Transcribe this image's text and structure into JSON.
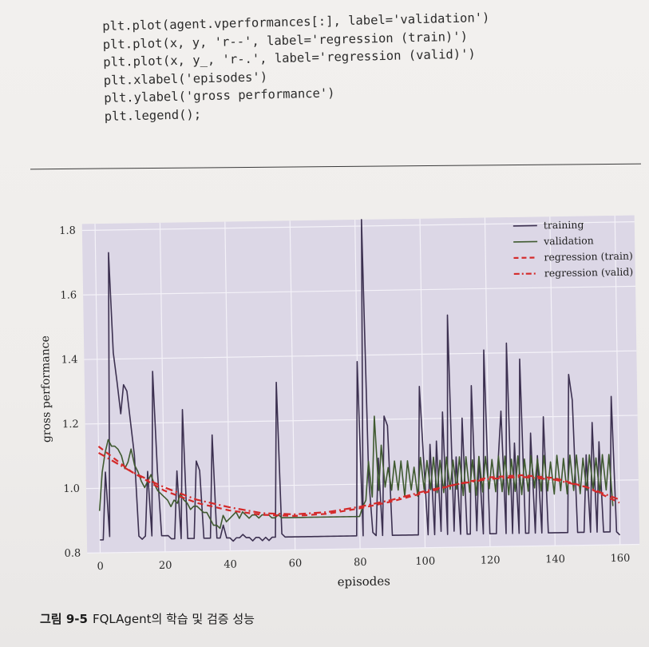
{
  "code": {
    "lines": [
      "plt.plot(agent.vperformances[:], label='validation')",
      "plt.plot(x, y, 'r--', label='regression (train)')",
      "plt.plot(x, y_, 'r-.', label='regression (valid)')",
      "plt.xlabel('episodes')",
      "plt.ylabel('gross performance')",
      "plt.legend();"
    ]
  },
  "caption": {
    "number": "그림 9-5",
    "text": "FQLAgent의 학습 및 검증 성능"
  },
  "chart_data": {
    "type": "line",
    "title": "",
    "xlabel": "episodes",
    "ylabel": "gross performance",
    "xlim": [
      -4,
      166
    ],
    "ylim": [
      0.8,
      1.82
    ],
    "xticks": [
      0,
      20,
      40,
      60,
      80,
      100,
      120,
      140,
      160
    ],
    "yticks": [
      0.8,
      1.0,
      1.2,
      1.4,
      1.6,
      1.8
    ],
    "xtick_labels": [
      "0",
      "20",
      "40",
      "60",
      "80",
      "100",
      "120",
      "140",
      "160"
    ],
    "ytick_labels": [
      "0.8",
      "1.0",
      "1.2",
      "1.4",
      "1.6",
      "1.8"
    ],
    "grid": true,
    "legend_position": "top-right",
    "colors": {
      "training": "#3c3050",
      "validation": "#3f5a30",
      "regression": "#d42a2a",
      "plot_bg": "#dcd7e6",
      "grid": "#f4f2f8"
    },
    "series": [
      {
        "name": "training",
        "style": "solid",
        "values": [
          0.84,
          0.84,
          1.05,
          0.85,
          1.73,
          1.42,
          1.33,
          1.23,
          1.32,
          1.3,
          1.2,
          1.1,
          0.85,
          0.84,
          0.85,
          1.05,
          0.85,
          1.36,
          1.05,
          0.85,
          0.85,
          0.85,
          0.84,
          0.84,
          1.05,
          0.84,
          1.24,
          0.84,
          0.84,
          0.84,
          1.08,
          1.05,
          0.84,
          0.84,
          0.84,
          1.16,
          0.84,
          0.84,
          0.88,
          0.84,
          0.84,
          0.83,
          0.84,
          0.84,
          0.85,
          0.84,
          0.84,
          0.83,
          0.84,
          0.84,
          0.83,
          0.84,
          0.83,
          0.84,
          0.84,
          1.32,
          0.85,
          0.84,
          0.84,
          0.84,
          0.84,
          0.84,
          0.84,
          0.84,
          0.84,
          0.84,
          0.84,
          0.84,
          0.84,
          0.84,
          0.84,
          0.84,
          0.84,
          0.84,
          0.84,
          0.84,
          0.84,
          0.84,
          0.84,
          0.84,
          1.38,
          0.84,
          1.82,
          1.02,
          0.85,
          0.84,
          1.08,
          0.84,
          1.21,
          1.18,
          0.84,
          0.84,
          0.84,
          0.84,
          0.84,
          0.84,
          0.84,
          0.84,
          0.84,
          1.3,
          1.07,
          0.84,
          1.12,
          0.84,
          1.13,
          0.85,
          1.22,
          0.84,
          1.52,
          0.85,
          1.08,
          0.84,
          1.2,
          0.84,
          0.84,
          1.3,
          0.85,
          1.08,
          0.84,
          1.41,
          0.84,
          0.84,
          0.84,
          1.08,
          1.22,
          0.84,
          1.43,
          0.84,
          1.12,
          0.84,
          1.38,
          0.84,
          0.84,
          1.15,
          0.84,
          1.08,
          0.84,
          1.2,
          0.84,
          0.84,
          0.84,
          0.84,
          0.84,
          0.84,
          0.84,
          1.33,
          1.25,
          0.84,
          0.84,
          0.84,
          1.08,
          0.84,
          1.18,
          0.84,
          1.12,
          0.84,
          0.84,
          0.84,
          1.26,
          0.84,
          0.83
        ]
      },
      {
        "name": "validation",
        "style": "solid",
        "values": [
          0.93,
          1.05,
          1.11,
          1.15,
          1.13,
          1.13,
          1.12,
          1.1,
          1.06,
          1.08,
          1.12,
          1.07,
          1.05,
          1.02,
          1.0,
          1.02,
          1.04,
          1.01,
          0.99,
          0.98,
          0.97,
          0.96,
          0.94,
          0.96,
          0.95,
          0.98,
          0.96,
          0.95,
          0.93,
          0.94,
          0.94,
          0.93,
          0.92,
          0.92,
          0.9,
          0.88,
          0.88,
          0.87,
          0.91,
          0.89,
          0.9,
          0.91,
          0.92,
          0.9,
          0.92,
          0.91,
          0.9,
          0.91,
          0.91,
          0.9,
          0.91,
          0.91,
          0.91,
          0.9,
          0.9,
          0.91,
          0.9,
          0.9,
          0.9,
          0.9,
          0.9,
          0.9,
          0.9,
          0.9,
          0.9,
          0.9,
          0.9,
          0.9,
          0.9,
          0.9,
          0.9,
          0.9,
          0.9,
          0.9,
          0.9,
          0.9,
          0.9,
          0.9,
          0.9,
          0.9,
          0.9,
          0.93,
          0.95,
          1.07,
          0.96,
          1.21,
          0.98,
          1.12,
          0.99,
          1.05,
          0.98,
          1.07,
          0.98,
          1.07,
          0.96,
          1.07,
          0.98,
          1.05,
          0.96,
          1.08,
          0.98,
          1.07,
          0.98,
          1.08,
          0.97,
          1.07,
          0.97,
          1.08,
          0.98,
          1.07,
          0.98,
          1.08,
          0.96,
          1.08,
          0.97,
          1.07,
          0.96,
          1.08,
          0.97,
          1.08,
          0.98,
          1.07,
          0.97,
          1.08,
          0.97,
          1.08,
          0.96,
          1.07,
          0.97,
          1.08,
          0.96,
          1.07,
          0.97,
          1.08,
          0.98,
          1.07,
          0.97,
          1.08,
          0.97,
          1.06,
          0.96,
          1.08,
          0.97,
          1.07,
          0.96,
          1.08,
          0.97,
          1.08,
          0.96,
          1.07,
          0.97,
          1.08,
          0.97,
          1.07,
          0.96,
          1.08,
          0.97,
          1.08,
          0.92
        ]
      },
      {
        "name": "regression (train)",
        "style": "dashed",
        "x": [
          0,
          10,
          20,
          30,
          40,
          50,
          60,
          70,
          80,
          90,
          100,
          110,
          120,
          130,
          140,
          150,
          160
        ],
        "values": [
          1.13,
          1.05,
          0.99,
          0.95,
          0.925,
          0.91,
          0.905,
          0.91,
          0.925,
          0.945,
          0.97,
          0.995,
          1.015,
          1.02,
          1.01,
          0.98,
          0.93
        ]
      },
      {
        "name": "regression (valid)",
        "style": "dashdot",
        "x": [
          0,
          10,
          20,
          30,
          40,
          50,
          60,
          70,
          80,
          90,
          100,
          110,
          120,
          130,
          140,
          150,
          160
        ],
        "values": [
          1.11,
          1.05,
          1.0,
          0.96,
          0.935,
          0.915,
          0.91,
          0.915,
          0.93,
          0.95,
          0.975,
          0.995,
          1.01,
          1.015,
          1.005,
          0.98,
          0.94
        ]
      }
    ]
  }
}
